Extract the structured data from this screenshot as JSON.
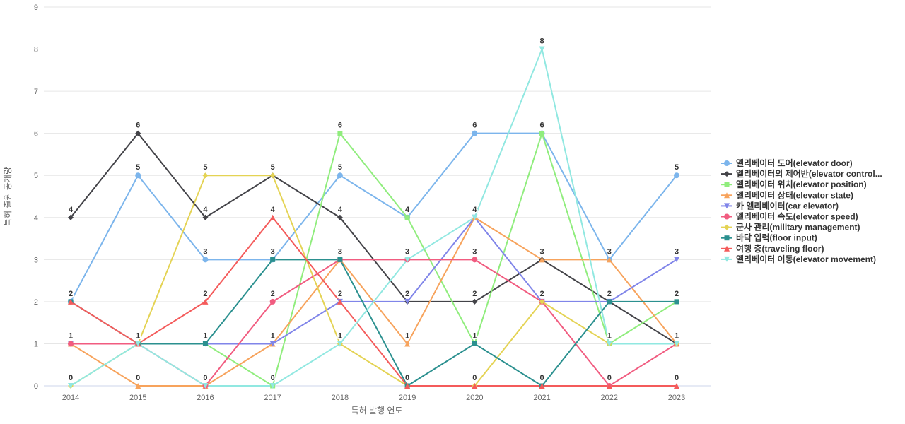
{
  "chart_data": {
    "type": "line",
    "title": "",
    "xlabel": "특허 발행 연도",
    "ylabel": "특허 출원 공개량",
    "x": [
      "2014",
      "2015",
      "2016",
      "2017",
      "2018",
      "2019",
      "2020",
      "2021",
      "2022",
      "2023"
    ],
    "ylim": [
      0,
      9
    ],
    "y_ticks": [
      0,
      1,
      2,
      3,
      4,
      5,
      6,
      7,
      8,
      9
    ],
    "grid": true,
    "legend_position": "right",
    "series": [
      {
        "name": "엘리베이터 도어(elevator door)",
        "color": "#7cb5ec",
        "marker": "circle",
        "values": [
          2,
          5,
          3,
          3,
          5,
          4,
          6,
          6,
          3,
          5
        ]
      },
      {
        "name": "엘리베이터의 제어반(elevator control...",
        "color": "#434348",
        "marker": "diamond",
        "values": [
          4,
          6,
          4,
          5,
          4,
          2,
          2,
          3,
          2,
          1
        ]
      },
      {
        "name": "엘리베이터 위치(elevator position)",
        "color": "#90ed7d",
        "marker": "square",
        "values": [
          1,
          1,
          1,
          0,
          6,
          4,
          1,
          6,
          1,
          2
        ]
      },
      {
        "name": "엘리베이터 상태(elevator state)",
        "color": "#f7a35c",
        "marker": "triangle",
        "values": [
          1,
          0,
          0,
          1,
          3,
          1,
          4,
          3,
          3,
          1
        ]
      },
      {
        "name": "카 엘리베이터(car elevator)",
        "color": "#8085e9",
        "marker": "triangle-down",
        "values": [
          1,
          1,
          1,
          1,
          2,
          2,
          4,
          2,
          2,
          3
        ]
      },
      {
        "name": "엘리베이터 속도(elevator speed)",
        "color": "#f15c80",
        "marker": "circle",
        "values": [
          1,
          1,
          0,
          2,
          3,
          3,
          3,
          2,
          0,
          1
        ]
      },
      {
        "name": "군사 관리(military management)",
        "color": "#e4d354",
        "marker": "diamond",
        "values": [
          0,
          1,
          5,
          5,
          1,
          0,
          0,
          2,
          1,
          1
        ]
      },
      {
        "name": "바닥 입력(floor input)",
        "color": "#2b908f",
        "marker": "square",
        "values": [
          2,
          1,
          1,
          3,
          3,
          0,
          1,
          0,
          2,
          2
        ]
      },
      {
        "name": "여행 층(traveling floor)",
        "color": "#f45b5b",
        "marker": "triangle",
        "values": [
          2,
          1,
          2,
          4,
          2,
          0,
          0,
          0,
          0,
          0
        ]
      },
      {
        "name": "엘리베이터 이동(elevator movement)",
        "color": "#91e8e1",
        "marker": "triangle-down",
        "values": [
          0,
          1,
          0,
          0,
          1,
          3,
          4,
          8,
          1,
          1
        ]
      }
    ]
  },
  "styles": {
    "background": "#ffffff",
    "grid_color": "#e6e6e6",
    "axis_line_color": "#ccd6eb",
    "tick_label_color": "#666666",
    "axis_title_color": "#666666",
    "legend_text_color": "#333333",
    "data_label_color": "#333333"
  }
}
